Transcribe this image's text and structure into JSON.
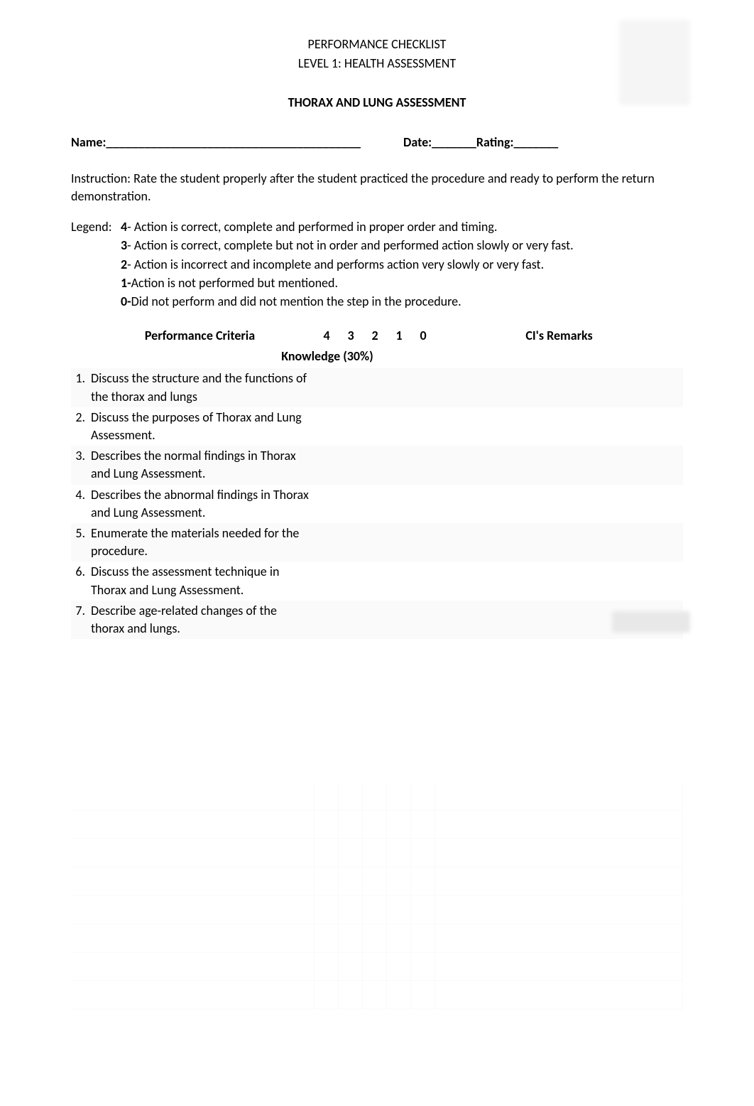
{
  "header": {
    "line1": "PERFORMANCE CHECKLIST",
    "line2": "LEVEL 1: HEALTH ASSESSMENT",
    "subtitle": "THORAX AND LUNG ASSESSMENT"
  },
  "fields": {
    "name_label": "Name:",
    "name_blank": " ________________________________________",
    "date_label": "Date:",
    "date_blank": " _______ ",
    "rating_label": "Rating:",
    "rating_blank": " _______"
  },
  "instruction": "Instruction: Rate the student properly after the student practiced the procedure and ready to perform the return demonstration.",
  "legend": {
    "label": "Legend:",
    "items": [
      {
        "num": "4",
        "text": "- Action is correct, complete and performed in proper order and timing."
      },
      {
        "num": "3",
        "text": "- Action is correct, complete but not in order and performed action slowly or very fast."
      },
      {
        "num": "2",
        "text": "- Action is incorrect and incomplete and performs action very slowly or very fast."
      },
      {
        "num": "1-",
        "text": "Action is not performed but mentioned."
      },
      {
        "num": "0-",
        "text": "Did not perform and did not mention the step in the procedure."
      }
    ]
  },
  "table": {
    "headers": {
      "criteria": "Performance Criteria",
      "scores": [
        "4",
        "3",
        "2",
        "1",
        "0"
      ],
      "remarks": "CI's Remarks"
    },
    "section": "Knowledge (30%)",
    "rows": [
      {
        "num": "1.",
        "text": "Discuss the structure and the functions of the thorax and lungs"
      },
      {
        "num": "2.",
        "text": "Discuss the purposes of Thorax and Lung Assessment."
      },
      {
        "num": "3.",
        "text": "Describes the normal findings in Thorax and Lung Assessment."
      },
      {
        "num": "4.",
        "text": "Describes the abnormal findings in Thorax and Lung Assessment."
      },
      {
        "num": "5.",
        "text": "Enumerate the materials needed for the procedure."
      },
      {
        "num": "6.",
        "text": "Discuss the assessment technique in Thorax and Lung Assessment."
      },
      {
        "num": "7.",
        "text": "Describe age-related changes of the thorax and lungs."
      }
    ]
  },
  "colors": {
    "text": "#000000",
    "background": "#ffffff",
    "alt_row": "#fafafa",
    "blur_bg": "#f5f5f5",
    "ghost_border": "#f0f0f0"
  },
  "typography": {
    "font_family": "Calibri",
    "base_size": 18,
    "bold_weight": "bold"
  }
}
